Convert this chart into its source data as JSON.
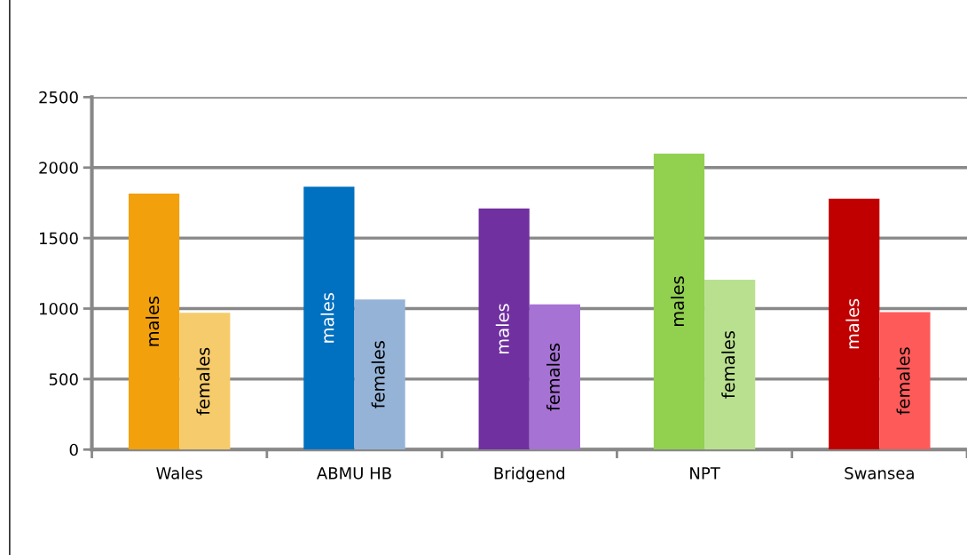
{
  "chart_data": {
    "type": "bar",
    "categories": [
      "Wales",
      "ABMU HB",
      "Bridgend",
      "NPT",
      "Swansea"
    ],
    "series": [
      {
        "name": "males",
        "colors": [
          "#f2a00c",
          "#0070c0",
          "#7030a0",
          "#92d050",
          "#c00000"
        ],
        "values": [
          1815,
          1865,
          1710,
          2100,
          1780
        ]
      },
      {
        "name": "females",
        "colors": [
          "#f6cb6b",
          "#95b3d7",
          "#a672d4",
          "#b9e08f",
          "#ff5a5a"
        ],
        "values": [
          970,
          1065,
          1030,
          1205,
          975
        ]
      }
    ],
    "ylim": [
      0,
      2500
    ],
    "yticks": [
      0,
      500,
      1000,
      1500,
      2000,
      2500
    ],
    "grid": "y",
    "legend": false
  }
}
